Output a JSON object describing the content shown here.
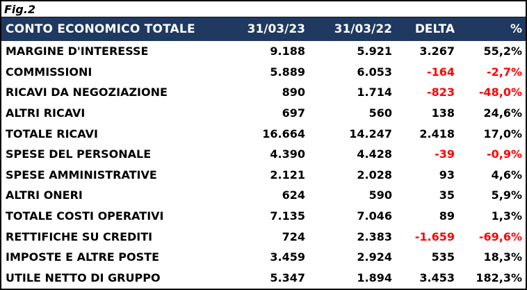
{
  "figure_label": "Fig.2",
  "colors": {
    "header_bg": "#1F3960",
    "header_text": "#FFFFFF",
    "negative_value": "#FF0000",
    "body_text": "#000000",
    "border": "#000000"
  },
  "chart_data": {
    "type": "table",
    "title": "CONTO ECONOMICO TOTALE",
    "columns": [
      "31/03/23",
      "31/03/22",
      "DELTA",
      "%"
    ],
    "rows": [
      {
        "label": "MARGINE D'INTERESSE",
        "values": [
          "9.188",
          "5.921",
          "3.267",
          "55,2%"
        ]
      },
      {
        "label": "COMMISSIONI",
        "values": [
          "5.889",
          "6.053",
          "-164",
          "-2,7%"
        ]
      },
      {
        "label": "RICAVI DA NEGOZIAZIONE",
        "values": [
          "890",
          "1.714",
          "-823",
          "-48,0%"
        ]
      },
      {
        "label": "ALTRI RICAVI",
        "values": [
          "697",
          "560",
          "138",
          "24,6%"
        ]
      },
      {
        "label": "TOTALE RICAVI",
        "values": [
          "16.664",
          "14.247",
          "2.418",
          "17,0%"
        ]
      },
      {
        "label": "SPESE DEL PERSONALE",
        "values": [
          "4.390",
          "4.428",
          "-39",
          "-0,9%"
        ]
      },
      {
        "label": "SPESE AMMINISTRATIVE",
        "values": [
          "2.121",
          "2.028",
          "93",
          "4,6%"
        ]
      },
      {
        "label": "ALTRI ONERI",
        "values": [
          "624",
          "590",
          "35",
          "5,9%"
        ]
      },
      {
        "label": "TOTALE COSTI OPERATIVI",
        "values": [
          "7.135",
          "7.046",
          "89",
          "1,3%"
        ]
      },
      {
        "label": "RETTIFICHE SU CREDITI",
        "values": [
          "724",
          "2.383",
          "-1.659",
          "-69,6%"
        ]
      },
      {
        "label": "IMPOSTE E ALTRE POSTE",
        "values": [
          "3.459",
          "2.924",
          "535",
          "18,3%"
        ]
      },
      {
        "label": "UTILE NETTO DI GRUPPO",
        "values": [
          "5.347",
          "1.894",
          "3.453",
          "182,3%"
        ]
      }
    ]
  }
}
